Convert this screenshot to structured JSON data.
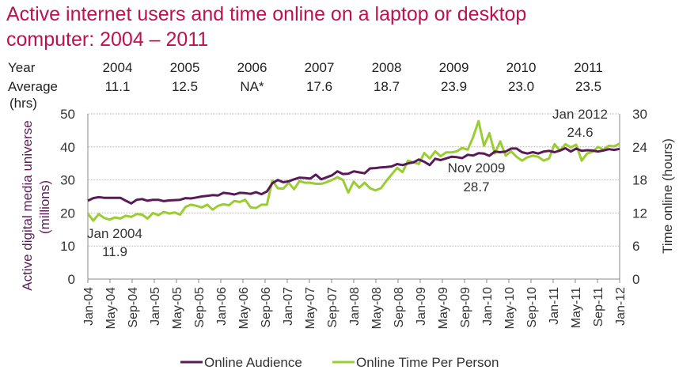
{
  "header": {
    "title": "Active internet users and time online on a laptop or desktop computer: 2004 – 2011"
  },
  "avg_table": {
    "year_label": "Year",
    "average_label": "Average",
    "hrs_label": "(hrs)",
    "years": [
      "2004",
      "2005",
      "2006",
      "2007",
      "2008",
      "2009",
      "2010",
      "2011"
    ],
    "averages": [
      "11.1",
      "12.5",
      "NA*",
      "17.6",
      "18.7",
      "23.9",
      "23.0",
      "23.5"
    ]
  },
  "colors": {
    "audience": "#5a1a58",
    "time": "#9acd32",
    "title": "#c0104f",
    "left_axis_label": "#5a1a58"
  },
  "chart_data": {
    "type": "line",
    "title": "Active internet users and time online on a laptop or desktop computer: 2004 – 2011",
    "y_left": {
      "label": "Active digital media universe (millions)",
      "min": 0,
      "max": 50,
      "ticks": [
        0,
        10,
        20,
        30,
        40,
        50
      ]
    },
    "y_right": {
      "label": "Time online (hours)",
      "min": 0,
      "max": 30,
      "ticks": [
        0,
        6,
        12,
        18,
        24,
        30
      ]
    },
    "x_start": "Jan-04",
    "x_end": "Jan-12",
    "x_tick_labels": [
      "Jan-04",
      "May-04",
      "Sep-04",
      "Jan-05",
      "May-05",
      "Sep-05",
      "Jan-06",
      "May-06",
      "Sep-06",
      "Jan-07",
      "May-07",
      "Sep-07",
      "Jan-08",
      "May-08",
      "Sep-08",
      "Jan-09",
      "May-09",
      "Sep-09",
      "Jan-10",
      "May-10",
      "Sep-10",
      "Jan-11",
      "May-11",
      "Sep-11",
      "Jan-12"
    ],
    "grid": "horizontal, left axis",
    "legend": "bottom",
    "series": [
      {
        "name": "Online Audience",
        "axis": "left",
        "values": [
          23.7,
          24.5,
          24.8,
          24.6,
          24.6,
          24.6,
          24.6,
          23.7,
          22.9,
          24.0,
          24.2,
          23.7,
          24.0,
          24.0,
          23.6,
          23.8,
          23.9,
          24.0,
          24.5,
          24.4,
          24.7,
          25.0,
          25.2,
          25.4,
          25.3,
          26.1,
          25.9,
          25.6,
          26.1,
          26.0,
          25.8,
          26.3,
          25.7,
          26.5,
          29.0,
          30.0,
          29.3,
          29.6,
          30.2,
          30.7,
          30.6,
          30.4,
          31.6,
          30.2,
          30.8,
          31.4,
          32.6,
          31.8,
          31.9,
          32.6,
          32.3,
          32.0,
          33.5,
          33.6,
          33.8,
          33.9,
          34.1,
          34.8,
          34.5,
          35.0,
          35.3,
          36.2,
          35.5,
          34.5,
          36.4,
          36.0,
          36.5,
          37.0,
          36.9,
          36.6,
          37.6,
          37.4,
          38.1,
          38.0,
          37.3,
          38.6,
          38.4,
          38.6,
          39.5,
          39.5,
          38.4,
          38.0,
          38.4,
          38.0,
          38.6,
          38.8,
          38.4,
          38.9,
          39.6,
          38.6,
          39.5,
          38.8,
          39.0,
          38.9,
          38.6,
          38.9,
          39.3,
          39.1,
          39.4
        ]
      },
      {
        "name": "Online Time Per Person",
        "axis": "right",
        "values": [
          11.9,
          10.6,
          11.8,
          11.1,
          10.8,
          11.2,
          11.0,
          11.5,
          11.3,
          11.8,
          11.7,
          11.0,
          12.0,
          11.6,
          12.2,
          11.9,
          12.1,
          11.7,
          13.1,
          13.5,
          13.3,
          13.0,
          13.5,
          12.6,
          13.3,
          13.6,
          13.4,
          14.2,
          14.0,
          14.4,
          13.0,
          12.9,
          13.5,
          13.5,
          17.9,
          16.5,
          16.4,
          17.5,
          16.3,
          17.8,
          17.5,
          17.5,
          17.3,
          17.3,
          17.6,
          18.0,
          18.5,
          18.0,
          15.7,
          17.7,
          16.6,
          17.5,
          16.5,
          16.1,
          16.5,
          17.8,
          19.0,
          20.2,
          19.4,
          21.5,
          21.2,
          20.9,
          22.9,
          21.9,
          23.2,
          22.3,
          23.0,
          23.0,
          23.2,
          23.8,
          23.5,
          25.8,
          28.7,
          24.2,
          26.5,
          22.8,
          25.0,
          22.4,
          23.2,
          22.2,
          21.5,
          22.1,
          22.4,
          22.2,
          21.5,
          21.9,
          24.5,
          23.3,
          24.5,
          23.9,
          24.4,
          21.5,
          22.8,
          23.1,
          24.0,
          23.5,
          24.2,
          24.1,
          24.6
        ]
      }
    ],
    "annotations": [
      {
        "text": [
          "Jan 2004",
          "11.9"
        ],
        "x": "Jan-04",
        "value": 11.9,
        "axis": "right"
      },
      {
        "text": [
          "Nov 2009",
          "28.7"
        ],
        "x": "Nov-09",
        "value": 28.7,
        "axis": "right"
      },
      {
        "text": [
          "Jan 2012",
          "24.6"
        ],
        "x": "Jan-12",
        "value": 24.6,
        "axis": "right"
      }
    ]
  }
}
